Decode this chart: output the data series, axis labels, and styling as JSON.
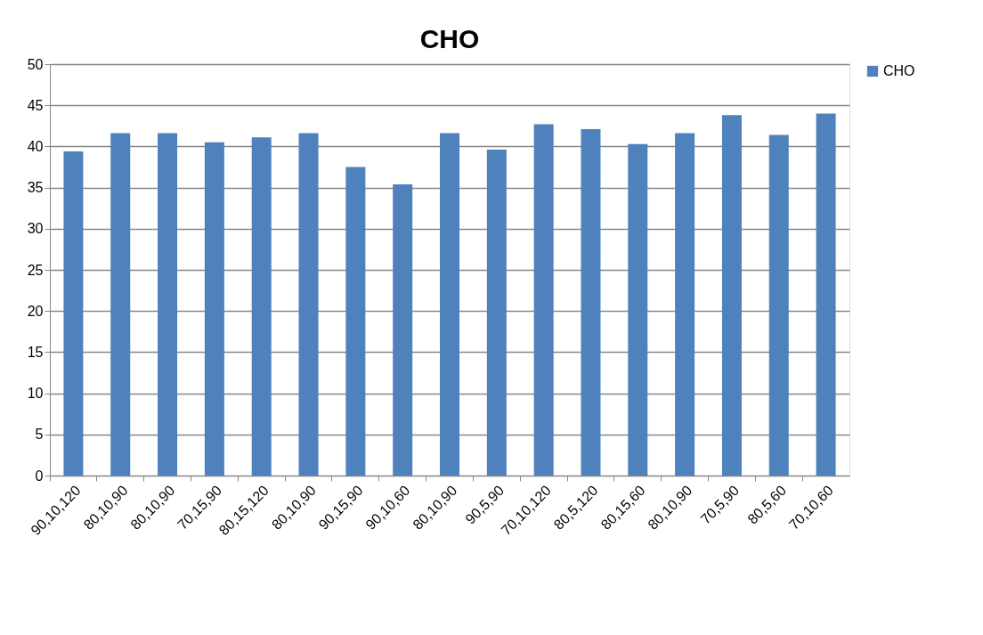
{
  "chart_data": {
    "type": "bar",
    "title": "CHO",
    "categories": [
      "90,10,120",
      "80,10,90",
      "80,10,90",
      "70,15,90",
      "80,15,120",
      "80,10,90",
      "90,15,90",
      "90,10,60",
      "80,10,90",
      "90,5,90",
      "70,10,120",
      "80,5,120",
      "80,15,60",
      "80,10,90",
      "70,5,90",
      "80,5,60",
      "70,10,60"
    ],
    "series": [
      {
        "name": "CHO",
        "color": "#4f81bd",
        "values": [
          39.4,
          41.6,
          41.6,
          40.5,
          41.1,
          41.6,
          37.5,
          35.4,
          41.6,
          39.6,
          42.7,
          42.1,
          40.3,
          41.6,
          43.8,
          41.4,
          44.0
        ]
      }
    ],
    "ylim": [
      0,
      50
    ],
    "yticks": [
      0,
      5,
      10,
      15,
      20,
      25,
      30,
      35,
      40,
      45,
      50
    ],
    "grid": "y",
    "legend": "right"
  }
}
